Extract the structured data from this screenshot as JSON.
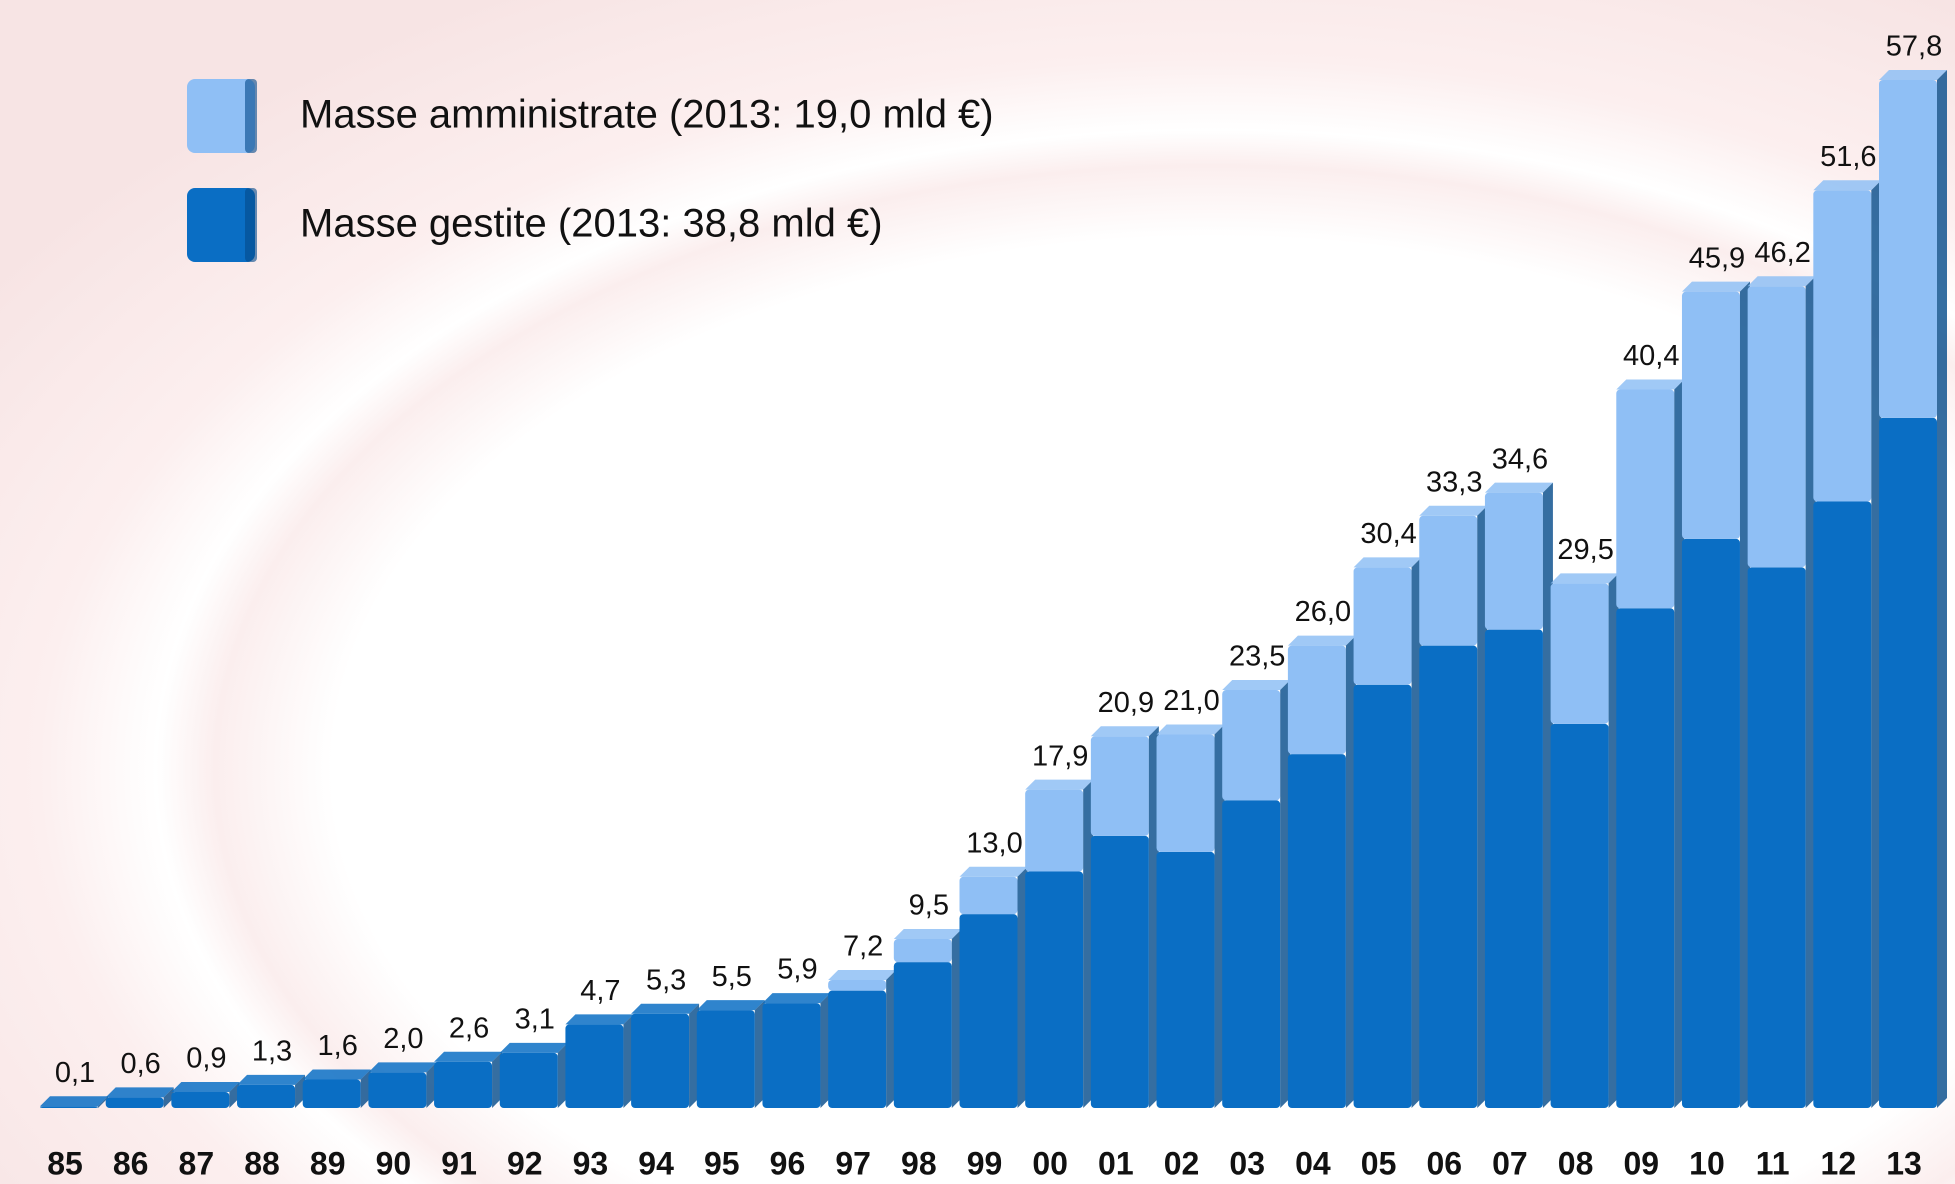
{
  "chart_data": {
    "type": "stacked-bar",
    "categories": [
      "85",
      "86",
      "87",
      "88",
      "89",
      "90",
      "91",
      "92",
      "93",
      "94",
      "95",
      "96",
      "97",
      "98",
      "99",
      "00",
      "01",
      "02",
      "03",
      "04",
      "05",
      "06",
      "07",
      "08",
      "09",
      "10",
      "11",
      "12",
      "13"
    ],
    "series": [
      {
        "name": "Masse gestite (2013: 38,8 mld €)",
        "color": "#0a6ec4",
        "values": [
          0.1,
          0.6,
          0.9,
          1.3,
          1.6,
          2.0,
          2.6,
          3.1,
          4.7,
          5.3,
          5.5,
          5.9,
          6.6,
          8.2,
          10.9,
          13.3,
          15.3,
          14.4,
          17.3,
          19.9,
          23.8,
          26.0,
          26.9,
          21.6,
          28.1,
          32.0,
          30.4,
          34.1,
          38.8
        ]
      },
      {
        "name": "Masse amministrate (2013: 19,0 mld €)",
        "color": "#8fbff5",
        "values": [
          0,
          0,
          0,
          0,
          0,
          0,
          0,
          0,
          0,
          0,
          0,
          0,
          0.6,
          1.3,
          2.1,
          4.6,
          5.6,
          6.6,
          6.2,
          6.1,
          6.6,
          7.3,
          7.7,
          7.9,
          12.3,
          13.9,
          15.8,
          17.5,
          19.0
        ]
      }
    ],
    "totals": {
      "values": [
        0.1,
        0.6,
        0.9,
        1.3,
        1.6,
        2.0,
        2.6,
        3.1,
        4.7,
        5.3,
        5.5,
        5.9,
        7.2,
        9.5,
        13.0,
        17.9,
        20.9,
        21.0,
        23.5,
        26.0,
        30.4,
        33.3,
        34.6,
        29.5,
        40.4,
        45.9,
        46.2,
        51.6,
        57.8
      ],
      "value_labels": [
        "0,1",
        "0,6",
        "0,9",
        "1,3",
        "1,6",
        "2,0",
        "2,6",
        "3,1",
        "4,7",
        "5,3",
        "5,5",
        "5,9",
        "7,2",
        "9,5",
        "13,0",
        "17,9",
        "20,9",
        "21,0",
        "23,5",
        "26,0",
        "30,4",
        "33,3",
        "34,6",
        "29,5",
        "40,4",
        "45,9",
        "46,2",
        "51,6",
        "57,8"
      ]
    }
  }
}
